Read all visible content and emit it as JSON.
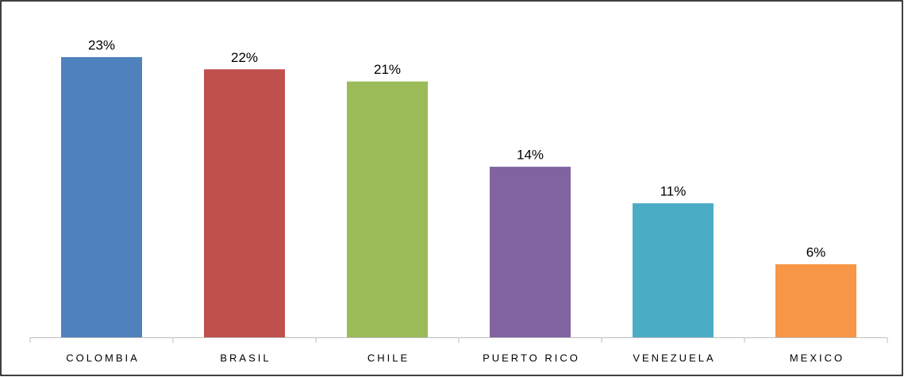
{
  "chart_data": {
    "type": "bar",
    "categories": [
      "COLOMBIA",
      "BRASIL",
      "CHILE",
      "PUERTO RICO",
      "VENEZUELA",
      "MEXICO"
    ],
    "values": [
      23,
      22,
      21,
      14,
      11,
      6
    ],
    "value_labels": [
      "23%",
      "22%",
      "21%",
      "14%",
      "11%",
      "6%"
    ],
    "colors": [
      "#4f81bd",
      "#c0504d",
      "#9bbb59",
      "#8064a2",
      "#4bacc6",
      "#f79646"
    ]
  }
}
